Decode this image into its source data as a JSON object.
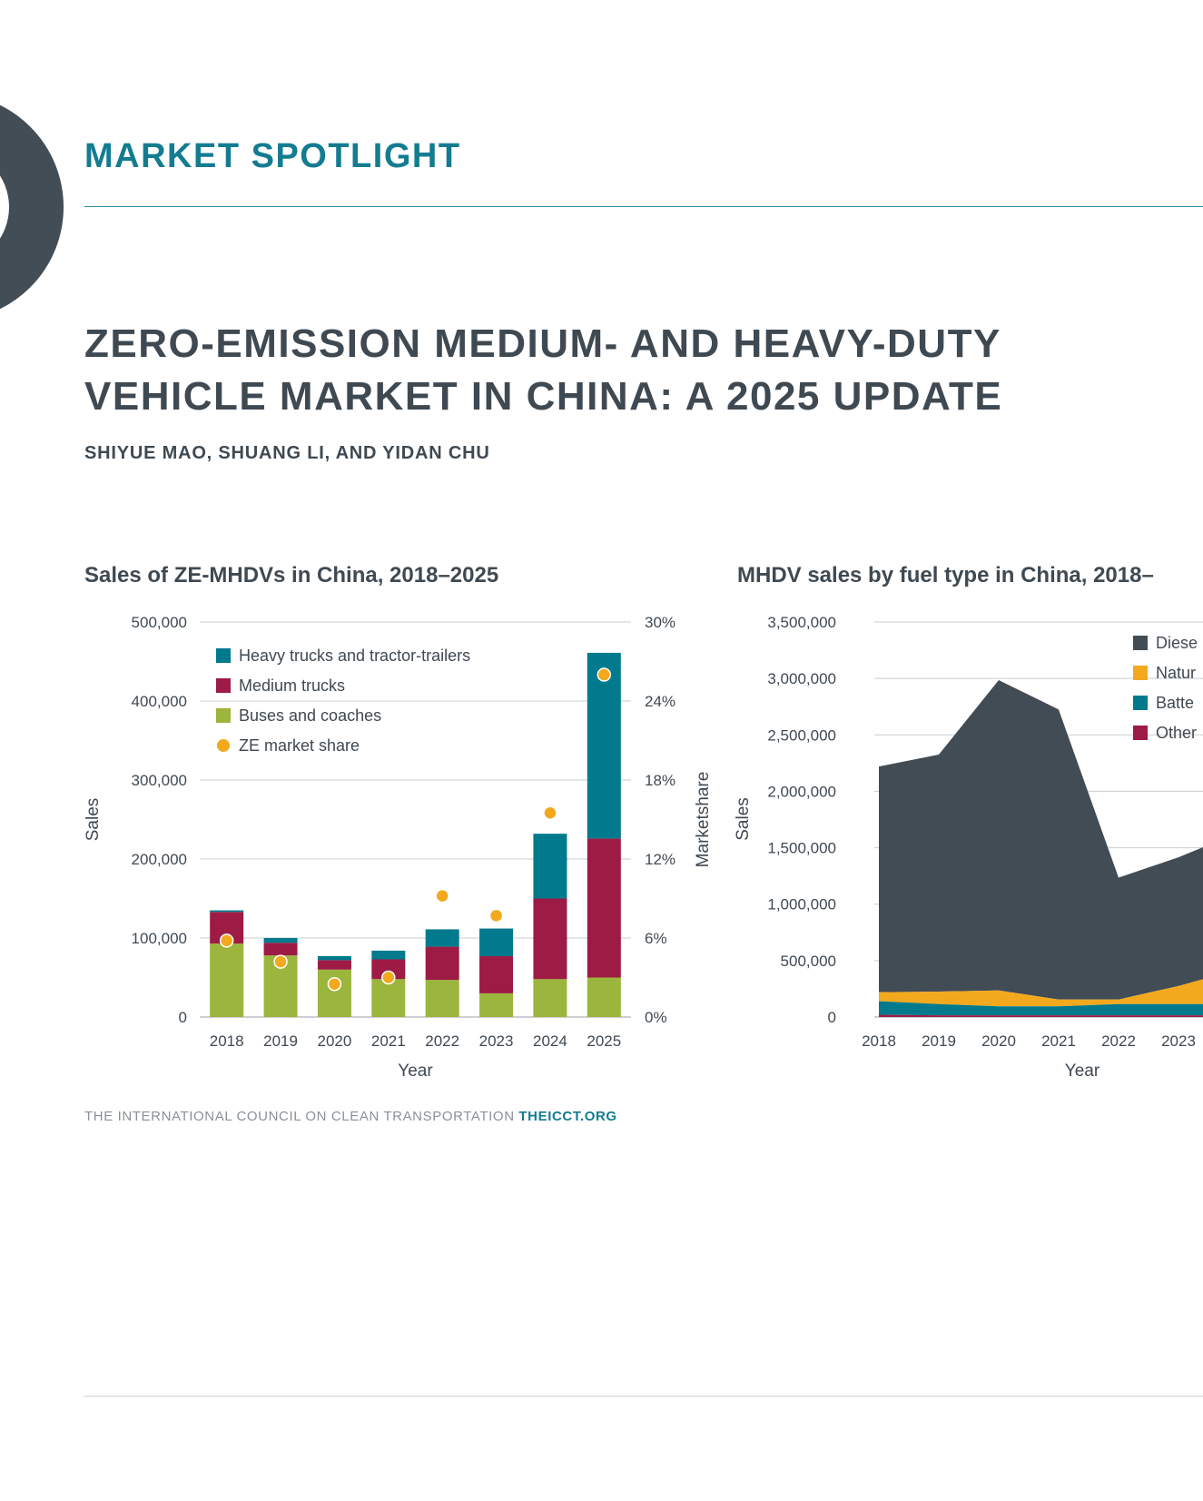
{
  "header": {
    "eyebrow": "MARKET SPOTLIGHT",
    "title": "ZERO-EMISSION MEDIUM- AND HEAVY-DUTY VEHICLE MARKET IN CHINA: A 2025 UPDATE",
    "authors": "SHIYUE MAO, SHUANG LI, AND YIDAN CHU"
  },
  "colors": {
    "teal": "#007a8c",
    "maroon": "#9d1b44",
    "green": "#9cb53c",
    "orange": "#f2a91d",
    "dark": "#424c55"
  },
  "chart_data": [
    {
      "type": "bar",
      "stacked": true,
      "title": "Sales of ZE-MHDVs in China, 2018–2025",
      "xlabel": "Year",
      "ylabel": "Sales",
      "y2label": "Marketshare",
      "ylim": [
        0,
        500000
      ],
      "y2lim": [
        0,
        30
      ],
      "yticks": [
        "0",
        "100,000",
        "200,000",
        "300,000",
        "400,000",
        "500,000"
      ],
      "y2ticks": [
        "0%",
        "6%",
        "12%",
        "18%",
        "24%",
        "30%"
      ],
      "categories": [
        "2018",
        "2019",
        "2020",
        "2021",
        "2022",
        "2023",
        "2024",
        "2025"
      ],
      "legend_position": "top-left",
      "grid": true,
      "series": [
        {
          "name": "Heavy trucks and tractor-trailers",
          "color": "#007a8c",
          "values": [
            2000,
            6000,
            5000,
            11000,
            22000,
            35000,
            82000,
            235000
          ]
        },
        {
          "name": "Medium trucks",
          "color": "#9d1b44",
          "values": [
            40000,
            16000,
            12000,
            25000,
            42000,
            47000,
            102000,
            176000
          ]
        },
        {
          "name": "Buses and coaches",
          "color": "#9cb53c",
          "values": [
            93000,
            78000,
            60000,
            48000,
            47000,
            30000,
            48000,
            50000
          ]
        }
      ],
      "share_series": {
        "name": "ZE market share",
        "color": "#f2a91d",
        "values": [
          5.8,
          4.2,
          2.5,
          3.0,
          9.2,
          7.7,
          15.5,
          26.0
        ]
      }
    },
    {
      "type": "area",
      "stacked": true,
      "title": "MHDV sales by fuel type in China, 2018–",
      "xlabel": "Year",
      "ylabel": "Sales",
      "ylim": [
        0,
        3500000
      ],
      "yticks": [
        "0",
        "500,000",
        "1,000,000",
        "1,500,000",
        "2,000,000",
        "2,500,000",
        "3,000,000",
        "3,500,000"
      ],
      "x": [
        "2018",
        "2019",
        "2020",
        "2021",
        "2022",
        "2023"
      ],
      "legend_position": "top-right",
      "grid": true,
      "series": [
        {
          "name": "Diese",
          "color": "#424c55",
          "values": [
            2000000,
            2100000,
            2750000,
            2570000,
            1080000,
            1140000
          ]
        },
        {
          "name": "Natur",
          "color": "#f2a91d",
          "values": [
            80000,
            110000,
            140000,
            60000,
            40000,
            160000
          ]
        },
        {
          "name": "Batte",
          "color": "#007a8c",
          "values": [
            120000,
            100000,
            80000,
            80000,
            100000,
            100000
          ]
        },
        {
          "name": "Other",
          "color": "#9d1b44",
          "values": [
            20000,
            15000,
            15000,
            15000,
            15000,
            15000
          ]
        }
      ]
    }
  ],
  "footer": {
    "org": "THE INTERNATIONAL COUNCIL ON CLEAN TRANSPORTATION",
    "url": "THEICCT.ORG"
  }
}
